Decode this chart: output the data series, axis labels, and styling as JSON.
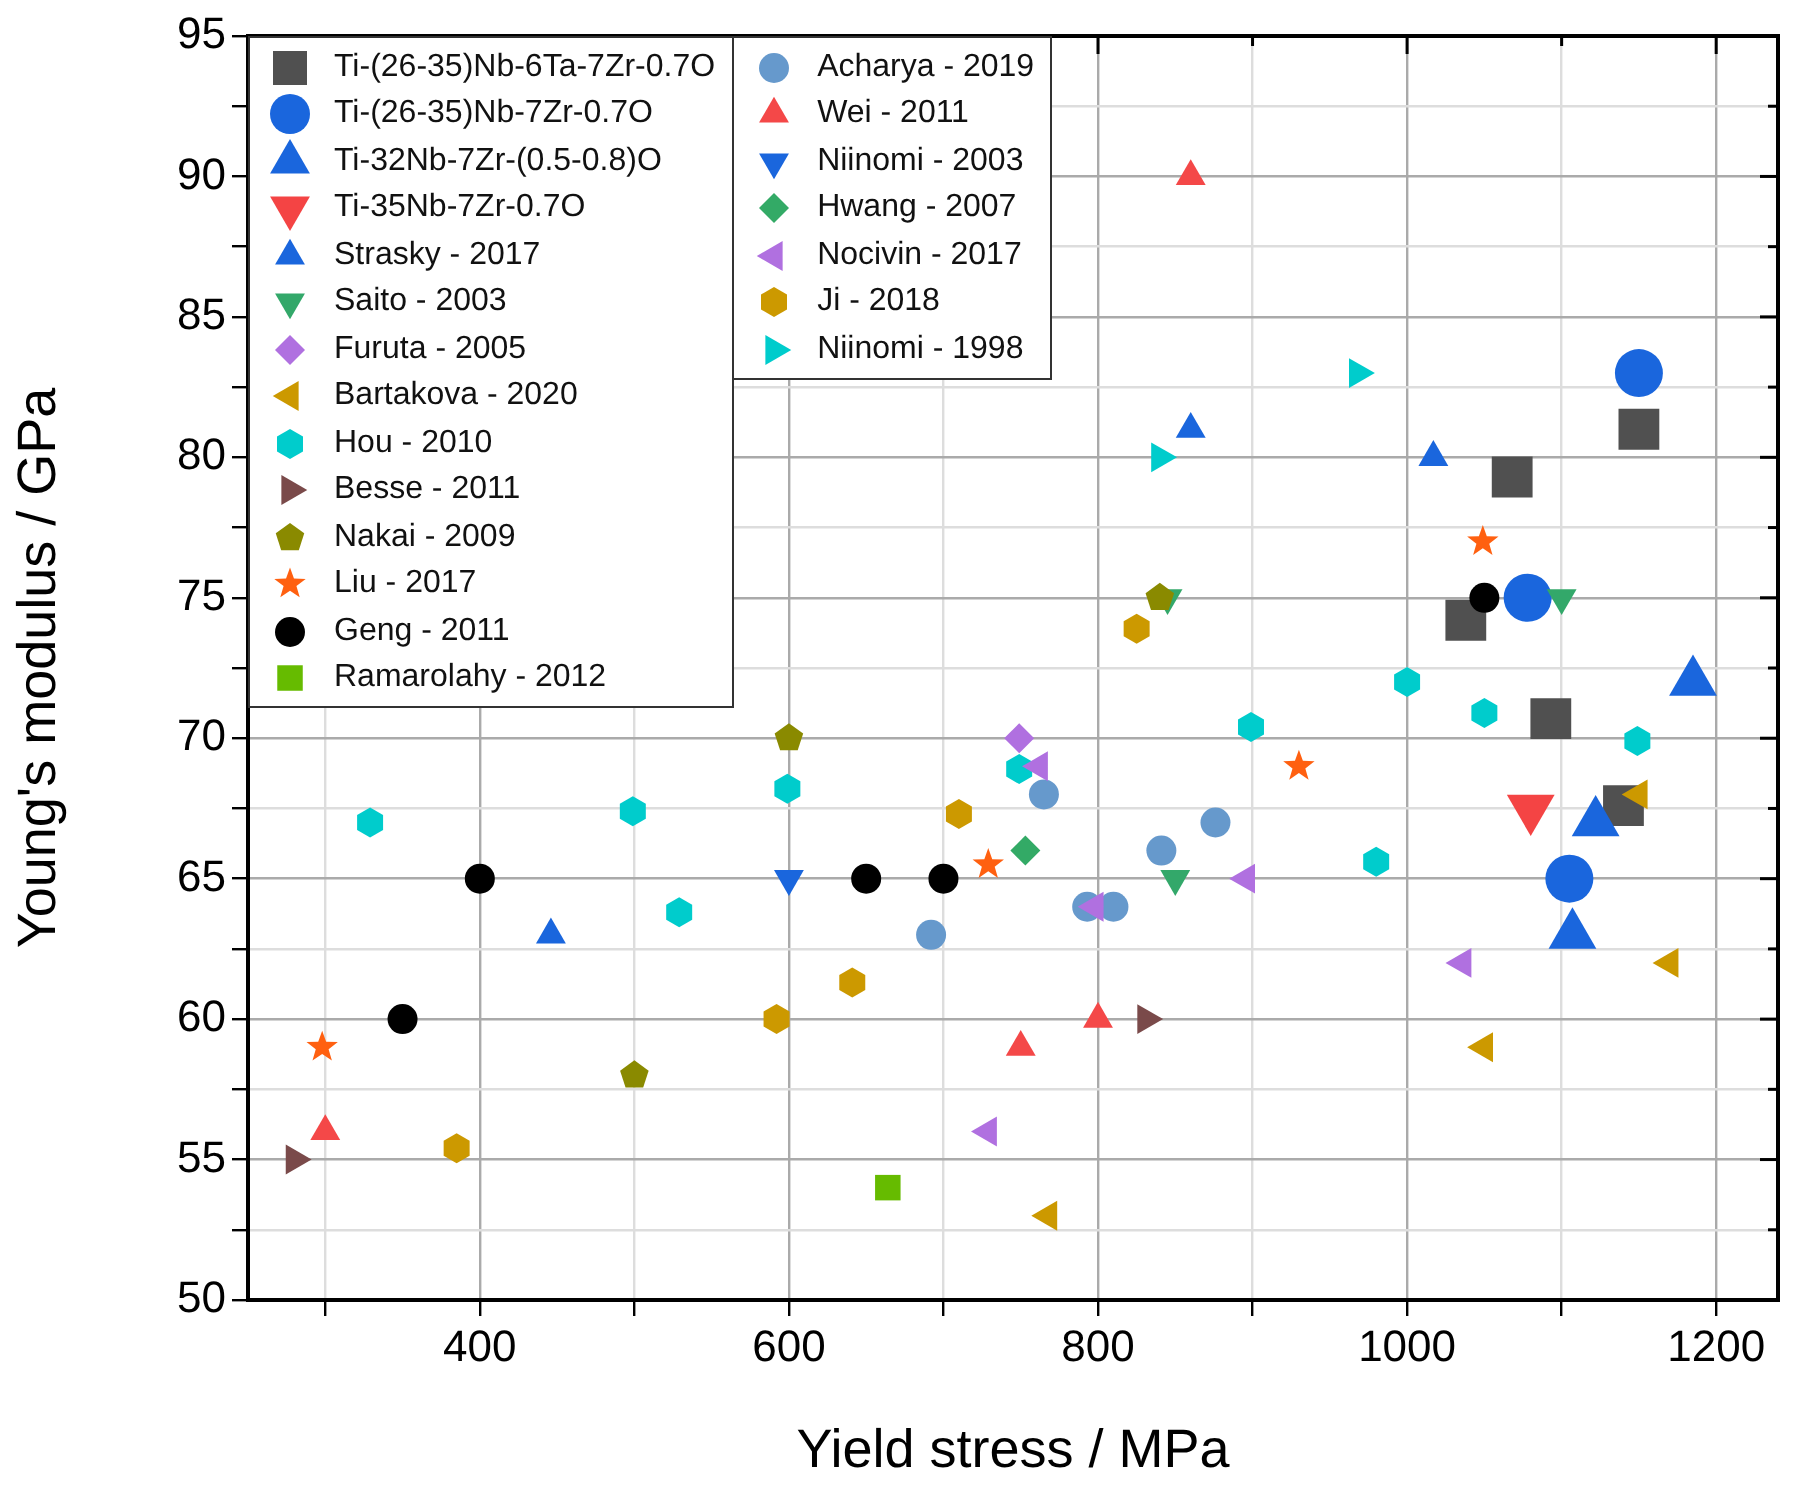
{
  "chart_data": {
    "type": "scatter",
    "xlabel": "Yield stress / MPa",
    "ylabel": "Young's modulus / GPa",
    "xlim": [
      250,
      1240
    ],
    "ylim": [
      50,
      95
    ],
    "xticks": [
      {
        "value": 300,
        "label": null
      },
      400,
      {
        "value": 500,
        "label": null
      },
      600,
      {
        "value": 700,
        "label": null
      },
      800,
      {
        "value": 900,
        "label": null
      },
      1000,
      {
        "value": 1100,
        "label": null
      },
      1200
    ],
    "yticks": [
      50,
      {
        "value": 52.5,
        "label": null
      },
      55,
      {
        "value": 57.5,
        "label": null
      },
      60,
      {
        "value": 62.5,
        "label": null
      },
      65,
      {
        "value": 67.5,
        "label": null
      },
      70,
      {
        "value": 72.5,
        "label": null
      },
      75,
      {
        "value": 77.5,
        "label": null
      },
      80,
      {
        "value": 82.5,
        "label": null
      },
      85,
      {
        "value": 87.5,
        "label": null
      },
      90,
      {
        "value": 92.5,
        "label": null
      },
      95
    ],
    "grid": true,
    "legend": "top left",
    "series": [
      {
        "name": "Ti-(26-35)Nb-6Ta-7Zr-0.7O",
        "marker": "square",
        "color": "#505050",
        "x": [
          1068,
          1150,
          1038,
          1093,
          1140
        ],
        "values": [
          79.3,
          81,
          74.2,
          70.7,
          67.6
        ]
      },
      {
        "name": "Ti-(26-35)Nb-7Zr-0.7O",
        "marker": "circle",
        "color": "#1a66dd",
        "x": [
          1150,
          1078,
          1105
        ],
        "values": [
          83,
          75,
          65
        ]
      },
      {
        "name": "Ti-32Nb-7Zr-(0.5-0.8)O",
        "marker": "triangle",
        "color": "#1a66dd",
        "x": [
          1185,
          1122,
          1107
        ],
        "values": [
          72,
          67,
          63
        ]
      },
      {
        "name": "Ti-35Nb-7Zr-0.7O",
        "marker": "triangle-down",
        "color": "#f44444",
        "x": [
          1080
        ],
        "values": [
          67.5
        ]
      },
      {
        "name": "Strasky - 2017",
        "marker": "triangle",
        "color": "#1a66dd",
        "x": [
          860,
          1017,
          446
        ],
        "values": [
          81,
          80,
          63
        ]
      },
      {
        "name": "Saito - 2003",
        "marker": "triangle-down",
        "color": "#33a86a",
        "x": [
          845,
          1100,
          850
        ],
        "values": [
          75,
          75,
          65
        ]
      },
      {
        "name": "Furuta - 2005",
        "marker": "diamond",
        "color": "#b070e0",
        "x": [
          749
        ],
        "values": [
          70
        ]
      },
      {
        "name": "Bartakova - 2020",
        "marker": "triangle-left",
        "color": "#cc9900",
        "x": [
          1150,
          1170,
          1050,
          768
        ],
        "values": [
          68,
          62,
          59,
          53
        ]
      },
      {
        "name": "Hou - 2010",
        "color": "#00cccc",
        "x": [
          329,
          499,
          529,
          599,
          749,
          899,
          1000,
          1050,
          1149,
          980
        ],
        "values": [
          67,
          67.4,
          63.8,
          68.2,
          68.9,
          70.4,
          72,
          70.9,
          69.9,
          65.6
        ]
      },
      {
        "name": "Besse - 2011",
        "marker": "triangle-right",
        "color": "#7a4a4a",
        "x": [
          280,
          831
        ],
        "values": [
          55,
          60
        ]
      },
      {
        "name": "Nakai - 2009",
        "color": "#8a8a00",
        "x": [
          600,
          500,
          840
        ],
        "values": [
          70,
          58,
          75
        ]
      },
      {
        "name": "Liu - 2017",
        "marker": "star",
        "color": "#ff6010",
        "x": [
          298,
          729,
          930,
          1049
        ],
        "values": [
          59,
          65.5,
          69,
          77
        ]
      },
      {
        "name": "Geng - 2011",
        "marker": "circle",
        "color": "#000000",
        "x": [
          350,
          400,
          650,
          700,
          1050
        ],
        "values": [
          60,
          65,
          65,
          65,
          75
        ]
      },
      {
        "name": "Ramarolahy - 2012",
        "marker": "square",
        "color": "#66bb00",
        "x": [
          664
        ],
        "values": [
          54
        ]
      },
      {
        "name": "Acharya - 2019",
        "marker": "circle",
        "color": "#6699cc",
        "x": [
          692,
          765,
          841,
          876,
          793,
          810
        ],
        "values": [
          63,
          68,
          66,
          67,
          64,
          64
        ]
      },
      {
        "name": "Wei - 2011",
        "marker": "triangle",
        "color": "#f44848",
        "x": [
          860,
          300,
          750,
          800
        ],
        "values": [
          90,
          56,
          59,
          60
        ]
      },
      {
        "name": "Niinomi - 2003",
        "marker": "triangle-down",
        "color": "#1a66dd",
        "x": [
          600
        ],
        "values": [
          65
        ]
      },
      {
        "name": "Hwang - 2007",
        "marker": "diamond",
        "color": "#33aa66",
        "x": [
          753
        ],
        "values": [
          66
        ]
      },
      {
        "name": "Nocivin - 2017",
        "marker": "triangle-left",
        "color": "#b070e0",
        "x": [
          762,
          896,
          798,
          1036,
          729
        ],
        "values": [
          69,
          65,
          64,
          62,
          56
        ]
      },
      {
        "name": "Ji - 2018",
        "color": "#cc9900",
        "x": [
          385,
          592,
          641,
          710,
          825
        ],
        "values": [
          55.4,
          60,
          61.3,
          67.3,
          73.9
        ]
      },
      {
        "name": "Niinomi - 1998",
        "marker": "triangle-right",
        "color": "#00cccc",
        "x": [
          968,
          840
        ],
        "values": [
          83,
          80
        ]
      }
    ]
  }
}
